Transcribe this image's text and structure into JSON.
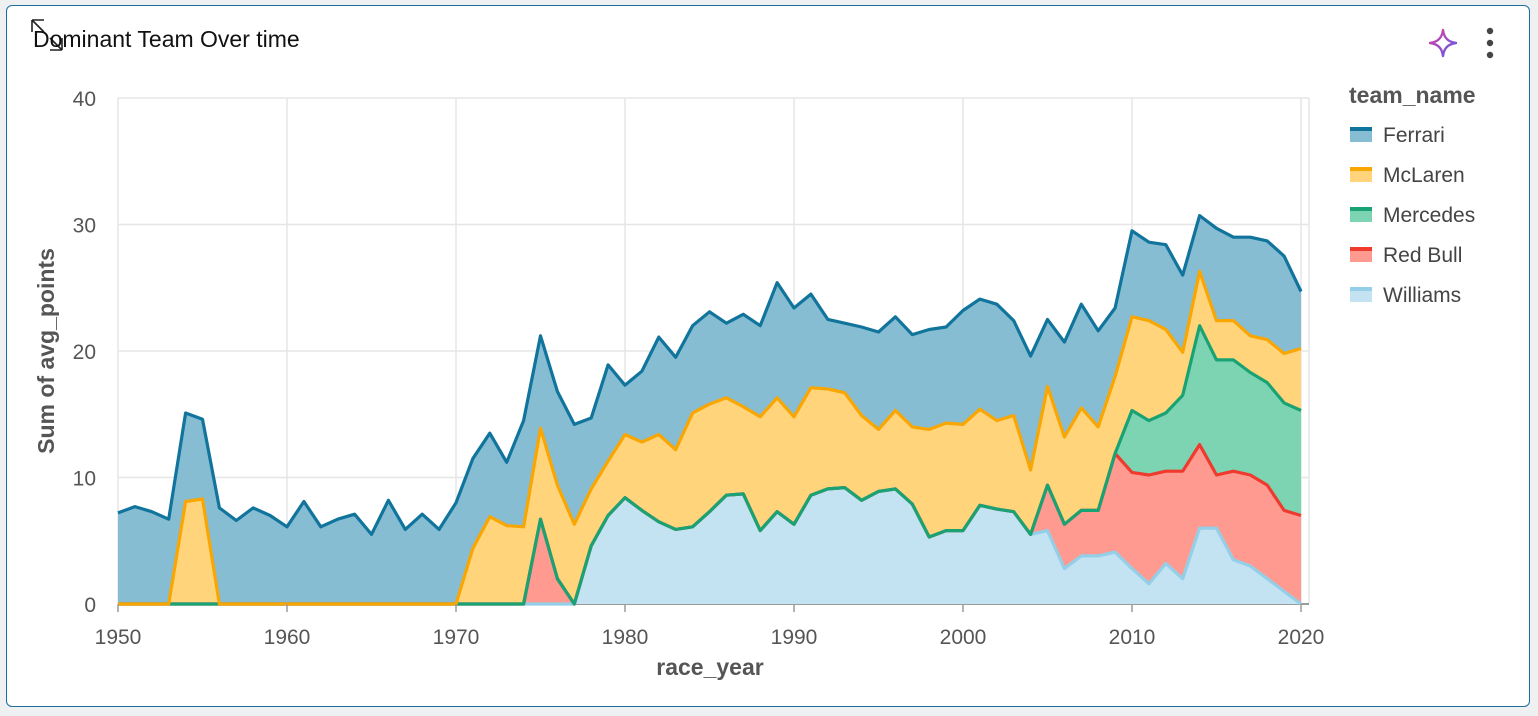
{
  "header": {
    "title": "Dominant Team Over time",
    "resize_icon": "resize-icon",
    "ai_icon": "sparkle-icon",
    "menu_icon": "more-vertical-icon"
  },
  "chart_data": {
    "type": "area",
    "stacked": true,
    "xlabel": "race_year",
    "ylabel": "Sum of avg_points",
    "xlim": [
      1950,
      2020
    ],
    "ylim": [
      0,
      40
    ],
    "xticks": [
      1950,
      1960,
      1970,
      1980,
      1990,
      2000,
      2010,
      2020
    ],
    "yticks": [
      0,
      10,
      20,
      30,
      40
    ],
    "grid": true,
    "legend": {
      "title": "team_name",
      "position": "right"
    },
    "x": [
      1950,
      1951,
      1952,
      1953,
      1954,
      1955,
      1956,
      1957,
      1958,
      1959,
      1960,
      1961,
      1962,
      1963,
      1964,
      1965,
      1966,
      1967,
      1968,
      1969,
      1970,
      1971,
      1972,
      1973,
      1974,
      1975,
      1976,
      1977,
      1978,
      1979,
      1980,
      1981,
      1982,
      1983,
      1984,
      1985,
      1986,
      1987,
      1988,
      1989,
      1990,
      1991,
      1992,
      1993,
      1994,
      1995,
      1996,
      1997,
      1998,
      1999,
      2000,
      2001,
      2002,
      2003,
      2004,
      2005,
      2006,
      2007,
      2008,
      2009,
      2010,
      2011,
      2012,
      2013,
      2014,
      2015,
      2016,
      2017,
      2018,
      2019,
      2020
    ],
    "series": [
      {
        "name": "Williams",
        "line_color": "#93cfe8",
        "fill_color": "#c3e3f3",
        "values": [
          0,
          0,
          0,
          0,
          0,
          0,
          0,
          0,
          0,
          0,
          0,
          0,
          0,
          0,
          0,
          0,
          0,
          0,
          0,
          0,
          0,
          0,
          0,
          0,
          0,
          0,
          0,
          0,
          4.6,
          7.0,
          8.4,
          7.4,
          6.5,
          5.9,
          6.1,
          7.3,
          8.6,
          8.7,
          5.8,
          7.3,
          6.3,
          8.6,
          9.1,
          9.2,
          8.2,
          8.9,
          9.1,
          7.9,
          5.3,
          5.8,
          5.8,
          7.8,
          7.5,
          7.3,
          5.5,
          5.8,
          2.8,
          3.8,
          3.8,
          4.1,
          2.8,
          1.6,
          3.2,
          2.0,
          6.0,
          6.0,
          3.5,
          3.0,
          2.0,
          1.0,
          0
        ]
      },
      {
        "name": "Red Bull",
        "line_color": "#ee3b2e",
        "fill_color": "#ff9a91",
        "values": [
          0,
          0,
          0,
          0,
          0,
          0,
          0,
          0,
          0,
          0,
          0,
          0,
          0,
          0,
          0,
          0,
          0,
          0,
          0,
          0,
          0,
          0,
          0,
          0,
          0,
          6.7,
          2.0,
          0,
          0,
          0,
          0,
          0,
          0,
          0,
          0,
          0,
          0,
          0,
          0,
          0,
          0,
          0,
          0,
          0,
          0,
          0,
          0,
          0,
          0,
          0,
          0,
          0,
          0,
          0,
          0,
          3.6,
          3.5,
          3.6,
          3.6,
          7.8,
          7.6,
          8.6,
          7.3,
          8.5,
          6.6,
          4.2,
          7.0,
          7.2,
          7.4,
          6.4,
          7.0
        ]
      },
      {
        "name": "Mercedes",
        "line_color": "#19a374",
        "fill_color": "#7dd4b3",
        "values": [
          0,
          0,
          0,
          0,
          0,
          0,
          0,
          0,
          0,
          0,
          0,
          0,
          0,
          0,
          0,
          0,
          0,
          0,
          0,
          0,
          0,
          0,
          0,
          0,
          0,
          0,
          0,
          0,
          0,
          0,
          0,
          0,
          0,
          0,
          0,
          0,
          0,
          0,
          0,
          0,
          0,
          0,
          0,
          0,
          0,
          0,
          0,
          0,
          0,
          0,
          0,
          0,
          0,
          0,
          0,
          0,
          0,
          0,
          0,
          0,
          4.9,
          4.3,
          4.6,
          6.0,
          9.4,
          9.1,
          8.8,
          8.1,
          8.1,
          8.5,
          8.3
        ]
      },
      {
        "name": "McLaren",
        "line_color": "#f9a602",
        "fill_color": "#ffd47a",
        "values": [
          0,
          0,
          0,
          0,
          8.1,
          8.3,
          0,
          0,
          0,
          0,
          0,
          0,
          0,
          0,
          0,
          0,
          0,
          0,
          0,
          0,
          0,
          4.4,
          6.9,
          6.2,
          6.1,
          7.2,
          7.4,
          6.3,
          4.5,
          4.3,
          5.0,
          5.4,
          6.9,
          6.3,
          9.0,
          8.5,
          7.7,
          6.9,
          9.0,
          9.0,
          8.5,
          8.5,
          7.9,
          7.5,
          6.7,
          4.9,
          6.2,
          6.1,
          8.5,
          8.5,
          8.4,
          7.6,
          7.0,
          7.6,
          5.1,
          7.8,
          6.9,
          8.1,
          6.6,
          6.1,
          7.4,
          7.9,
          6.6,
          3.4,
          4.3,
          3.1,
          3.1,
          2.9,
          3.4,
          3.9,
          4.9
        ]
      },
      {
        "name": "Ferrari",
        "line_color": "#11749c",
        "fill_color": "#86bdd2",
        "values": [
          7.2,
          7.7,
          7.3,
          6.7,
          7.0,
          6.3,
          7.6,
          6.6,
          7.6,
          7.0,
          6.1,
          8.1,
          6.1,
          6.7,
          7.1,
          5.5,
          8.2,
          5.9,
          7.1,
          5.9,
          8.0,
          7.1,
          6.6,
          5.0,
          8.4,
          7.3,
          7.4,
          7.9,
          5.6,
          7.6,
          3.9,
          5.6,
          7.7,
          7.3,
          6.9,
          7.3,
          5.9,
          7.3,
          7.2,
          9.1,
          8.6,
          7.4,
          5.5,
          5.5,
          7.0,
          7.7,
          7.4,
          7.3,
          7.9,
          7.6,
          9.0,
          8.7,
          9.2,
          7.5,
          9.0,
          5.3,
          7.5,
          8.2,
          7.6,
          5.4,
          6.8,
          6.2,
          6.7,
          6.1,
          4.4,
          7.3,
          6.6,
          7.8,
          7.8,
          7.7,
          4.5
        ]
      }
    ]
  }
}
